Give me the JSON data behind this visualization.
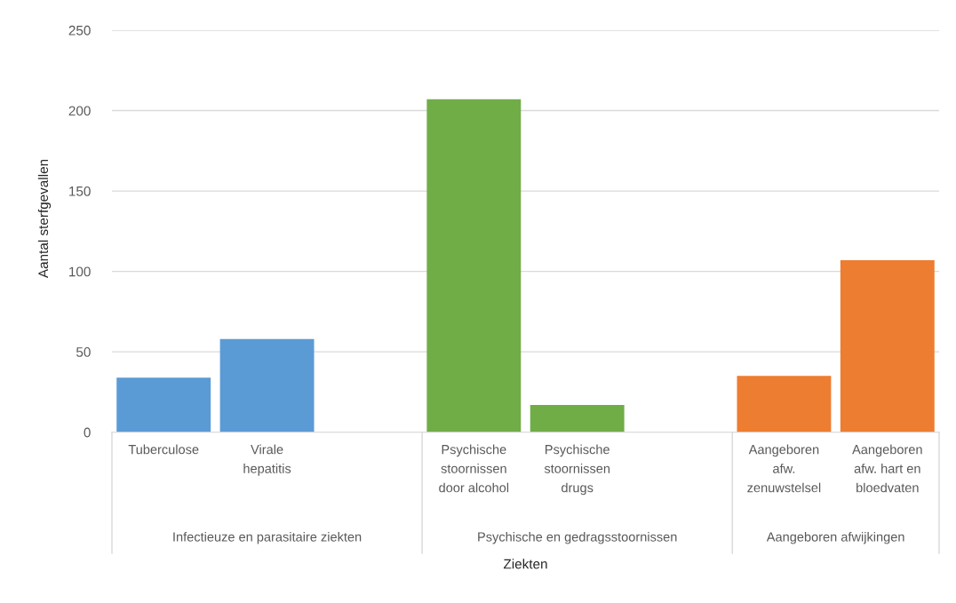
{
  "chart_data": {
    "type": "bar",
    "xlabel": "Ziekten",
    "ylabel": "Aantal sterfgevallen",
    "categories": [
      "Tuberculose",
      "Virale\nhepatitis",
      null,
      "Psychische\nstoornissen\ndoor alcohol",
      "Psychische\nstoornissen\ndrugs",
      null,
      "Aangeboren\nafw.\nzenuwstelsel",
      "Aangeboren\nafw. hart en\nbloedvaten"
    ],
    "values": [
      34,
      58,
      null,
      207,
      17,
      null,
      35,
      107
    ],
    "colors": [
      "#5b9bd5",
      "#5b9bd5",
      null,
      "#70ad47",
      "#70ad47",
      null,
      "#ed7d31",
      "#ed7d31"
    ],
    "ylim": [
      0,
      250
    ],
    "yticks": [
      0,
      50,
      100,
      150,
      200,
      250
    ],
    "grid": "y",
    "annotations": [
      "Infectieuze en parasitaire ziekten",
      "Psychische en gedragsstoornissen",
      "Aangeboren afwijkingen"
    ]
  }
}
